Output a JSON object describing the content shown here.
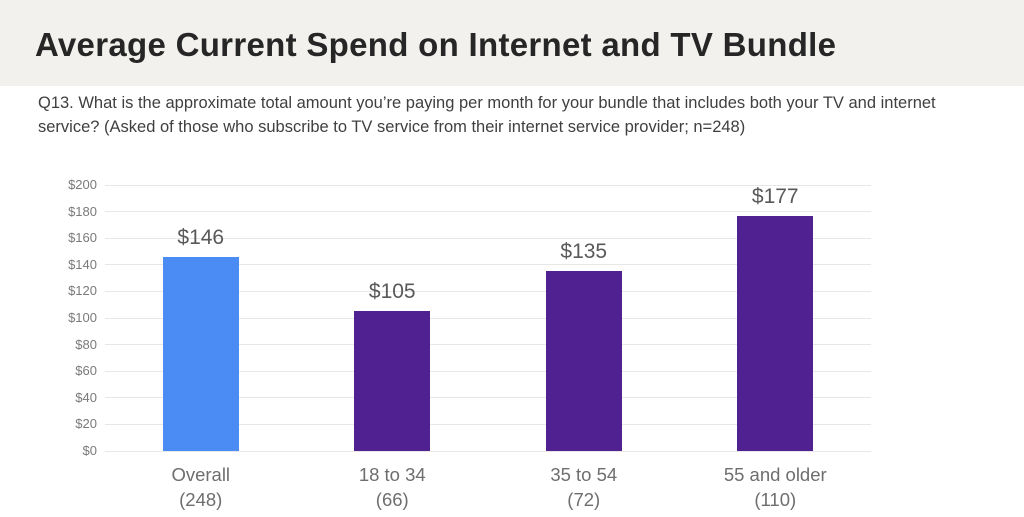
{
  "header": {
    "title": "Average Current Spend on Internet and TV Bundle",
    "background": "#f2f1ed"
  },
  "question": {
    "text": "Q13. What is the approximate total amount you’re paying per month for your bundle that includes both your TV and internet service? (Asked of those who subscribe to TV service from their internet service provider; n=248)"
  },
  "chart_data": {
    "type": "bar",
    "title": "",
    "xlabel": "",
    "ylabel": "",
    "categories": [
      "Overall",
      "18 to 34",
      "35 to 54",
      "55 and older"
    ],
    "category_counts": [
      "(248)",
      "(66)",
      "(72)",
      "(110)"
    ],
    "values": [
      146,
      105,
      135,
      177
    ],
    "value_labels": [
      "$146",
      "$105",
      "$135",
      "$177"
    ],
    "bar_colors": [
      "#4b8bf4",
      "#4f2191",
      "#4f2191",
      "#4f2191"
    ],
    "ylim": [
      0,
      200
    ],
    "ytick_step": 20,
    "ytick_labels": [
      "$0",
      "$20",
      "$40",
      "$60",
      "$80",
      "$100",
      "$120",
      "$140",
      "$160",
      "$180",
      "$200"
    ],
    "grid": true,
    "legend": "none"
  },
  "colors": {
    "grid": "#e7e7e7",
    "tick_text": "#7a7a7a",
    "value_text": "#595959",
    "category_text": "#6e6e6e",
    "title_text": "#262626",
    "question_text": "#3f3f3f"
  }
}
